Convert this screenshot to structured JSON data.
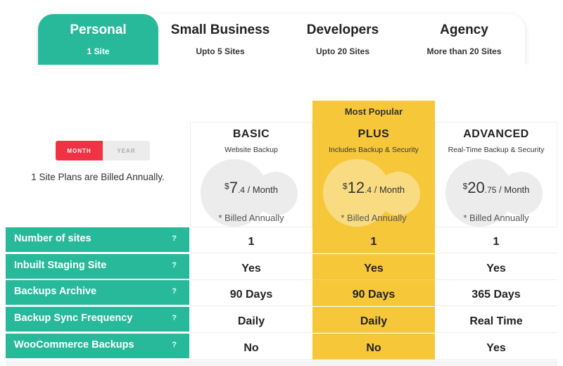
{
  "tabs": [
    {
      "title": "Personal",
      "sub": "1 Site"
    },
    {
      "title": "Small Business",
      "sub": "Upto 5 Sites"
    },
    {
      "title": "Developers",
      "sub": "Upto 20 Sites"
    },
    {
      "title": "Agency",
      "sub": "More than 20 Sites"
    }
  ],
  "billing": {
    "month_label": "MONTH",
    "year_label": "YEAR",
    "note": "1 Site Plans are Billed Annually."
  },
  "popular_label": "Most Popular",
  "plans": [
    {
      "name": "BASIC",
      "desc": "Website Backup",
      "currency": "$",
      "price_main": "7",
      "price_cents": ".4",
      "period": " / Month",
      "billed": "* Billed Annually"
    },
    {
      "name": "PLUS",
      "desc": "Includes Backup & Security",
      "currency": "$",
      "price_main": "12",
      "price_cents": ".4",
      "period": " / Month",
      "billed": "* Billed Annually"
    },
    {
      "name": "ADVANCED",
      "desc": "Real-Time Backup & Security",
      "currency": "$",
      "price_main": "20",
      "price_cents": ".75",
      "period": " / Month",
      "billed": "* Billed Annually"
    }
  ],
  "features": [
    {
      "label": "Number of sites",
      "q": "?",
      "basic": "1",
      "plus": "1",
      "advanced": "1"
    },
    {
      "label": "Inbuilt Staging Site",
      "q": "?",
      "basic": "Yes",
      "plus": "Yes",
      "advanced": "Yes"
    },
    {
      "label": "Backups Archive",
      "q": "?",
      "basic": "90 Days",
      "plus": "90 Days",
      "advanced": "365 Days"
    },
    {
      "label": "Backup Sync Frequency",
      "q": "?",
      "basic": "Daily",
      "plus": "Daily",
      "advanced": "Real Time"
    },
    {
      "label": "WooCommerce Backups",
      "q": "?",
      "basic": "No",
      "plus": "No",
      "advanced": "Yes"
    }
  ],
  "colors": {
    "accent": "#27b99a",
    "highlight": "#f7c73a",
    "toggle_on": "#ef3345"
  }
}
